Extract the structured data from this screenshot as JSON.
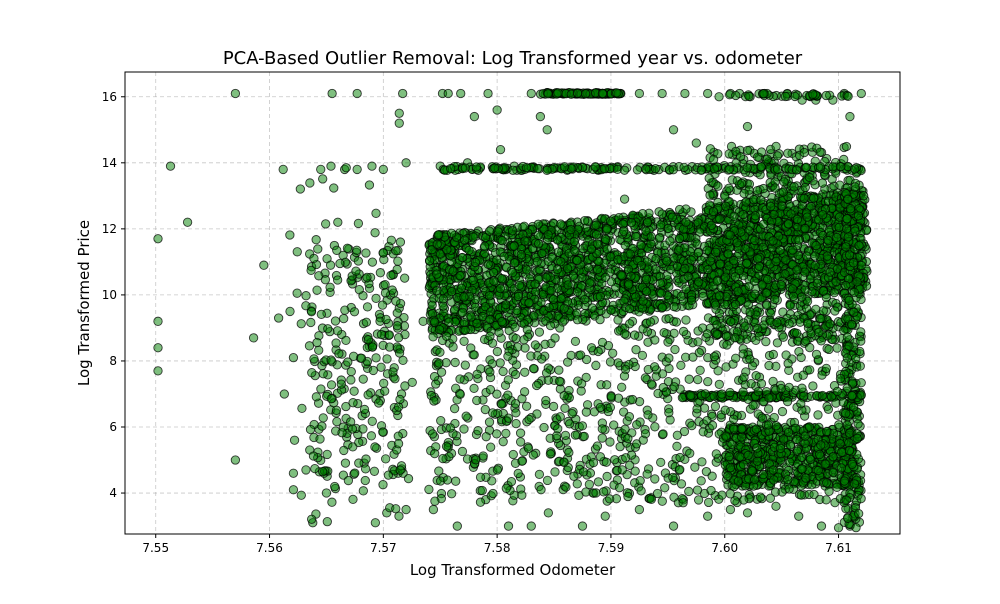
{
  "chart_data": {
    "type": "scatter",
    "title": "PCA-Based Outlier Removal: Log Transformed year vs. odometer",
    "xlabel": "Log Transformed Odometer",
    "ylabel": "Log Transformed Price",
    "xlim": [
      7.5473,
      7.6154
    ],
    "ylim": [
      2.76,
      16.75
    ],
    "xticks": [
      7.55,
      7.56,
      7.57,
      7.58,
      7.59,
      7.6,
      7.61
    ],
    "xtick_labels": [
      "7.55",
      "7.56",
      "7.57",
      "7.58",
      "7.59",
      "7.60",
      "7.61"
    ],
    "yticks": [
      4,
      6,
      8,
      10,
      12,
      14,
      16
    ],
    "ytick_labels": [
      "4",
      "6",
      "8",
      "10",
      "12",
      "14",
      "16"
    ],
    "grid": true,
    "grid_style": "dashed",
    "marker_color": "#008000",
    "marker_edge_color": "#000000",
    "marker_alpha": 0.5,
    "series": [
      {
        "points": [
          [
            7.5502,
            11.7
          ],
          [
            7.5502,
            9.2
          ],
          [
            7.5502,
            8.4
          ],
          [
            7.5502,
            7.7
          ],
          [
            7.5513,
            13.9
          ],
          [
            7.5528,
            12.2
          ],
          [
            7.557,
            16.1
          ],
          [
            7.557,
            5.0
          ],
          [
            7.5586,
            8.7
          ],
          [
            7.5595,
            10.9
          ],
          [
            7.5608,
            9.3
          ],
          [
            7.5613,
            7.0
          ],
          [
            7.5612,
            13.8
          ],
          [
            7.5618,
            9.5
          ],
          [
            7.5621,
            8.1
          ],
          [
            7.5621,
            4.6
          ],
          [
            7.5621,
            4.1
          ],
          [
            7.5622,
            5.6
          ],
          [
            7.5632,
            4.7
          ],
          [
            7.5638,
            3.1
          ],
          [
            7.5645,
            13.8
          ],
          [
            7.5654,
            13.9
          ],
          [
            7.5655,
            16.1
          ],
          [
            7.566,
            12.2
          ],
          [
            7.5677,
            16.1
          ],
          [
            7.5666,
            13.8
          ],
          [
            7.5677,
            13.8
          ],
          [
            7.569,
            13.9
          ],
          [
            7.57,
            13.8
          ],
          [
            7.5714,
            15.5
          ],
          [
            7.5714,
            15.2
          ],
          [
            7.5717,
            16.1
          ],
          [
            7.572,
            14.0
          ],
          [
            7.5703,
            3.4
          ],
          [
            7.5693,
            3.1
          ],
          [
            7.572,
            3.5
          ],
          [
            7.5713,
            4.6
          ],
          [
            7.5715,
            11.6
          ],
          [
            7.5714,
            9.6
          ],
          [
            7.5716,
            7.0
          ],
          [
            7.5719,
            8.8
          ],
          [
            7.5735,
            9.2
          ],
          [
            7.5742,
            11.5
          ],
          [
            7.5744,
            10.7
          ],
          [
            7.5742,
            9.5
          ],
          [
            7.5744,
            3.5
          ],
          [
            7.575,
            13.9
          ],
          [
            7.5752,
            16.1
          ],
          [
            7.5757,
            16.1
          ],
          [
            7.5768,
            16.1
          ],
          [
            7.5774,
            14.0
          ],
          [
            7.578,
            15.4
          ],
          [
            7.5792,
            16.1
          ],
          [
            7.58,
            15.6
          ],
          [
            7.5803,
            14.4
          ],
          [
            7.5815,
            13.9
          ],
          [
            7.583,
            16.1
          ],
          [
            7.5838,
            15.4
          ],
          [
            7.5844,
            15.0
          ],
          [
            7.5855,
            16.1
          ],
          [
            7.5868,
            16.1
          ],
          [
            7.5878,
            16.1
          ],
          [
            7.589,
            16.1
          ],
          [
            7.5898,
            16.1
          ],
          [
            7.5908,
            16.1
          ],
          [
            7.5912,
            12.9
          ],
          [
            7.5925,
            16.1
          ],
          [
            7.5945,
            16.1
          ],
          [
            7.5955,
            15.0
          ],
          [
            7.5965,
            16.1
          ],
          [
            7.5975,
            14.6
          ],
          [
            7.5985,
            16.1
          ],
          [
            7.5995,
            16.0
          ],
          [
            7.6005,
            16.1
          ],
          [
            7.6013,
            16.1
          ],
          [
            7.602,
            15.1
          ],
          [
            7.6035,
            16.1
          ],
          [
            7.6055,
            16.1
          ],
          [
            7.6068,
            15.9
          ],
          [
            7.608,
            15.9
          ],
          [
            7.6095,
            15.9
          ],
          [
            7.6105,
            16.1
          ],
          [
            7.611,
            15.4
          ],
          [
            7.612,
            16.1
          ],
          [
            7.5765,
            3.0
          ],
          [
            7.579,
            3.8
          ],
          [
            7.581,
            3.0
          ],
          [
            7.583,
            3.0
          ],
          [
            7.5845,
            3.4
          ],
          [
            7.5875,
            3.0
          ],
          [
            7.5895,
            3.3
          ],
          [
            7.5925,
            3.5
          ],
          [
            7.5955,
            3.0
          ],
          [
            7.5985,
            3.3
          ],
          [
            7.6005,
            3.5
          ],
          [
            7.602,
            3.4
          ],
          [
            7.6045,
            3.6
          ],
          [
            7.6065,
            3.3
          ],
          [
            7.6085,
            3.0
          ],
          [
            7.61,
            2.95
          ],
          [
            7.611,
            3.0
          ]
        ]
      }
    ]
  }
}
